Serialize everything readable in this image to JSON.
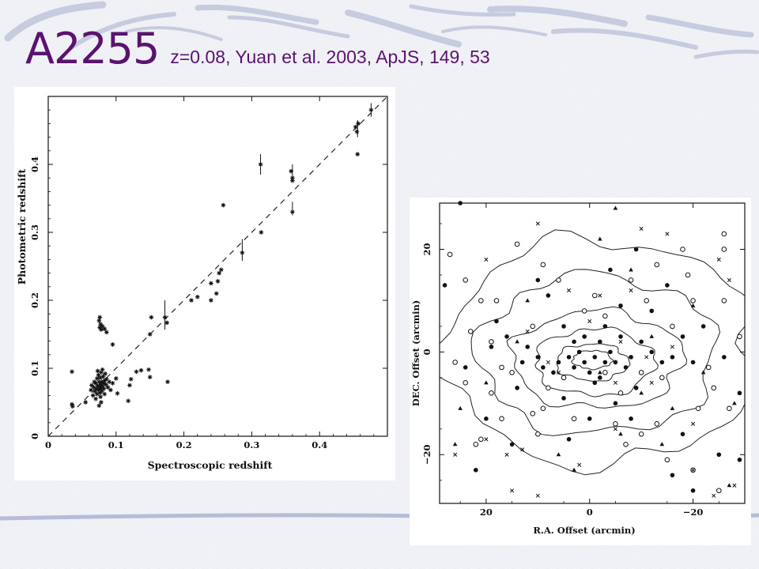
{
  "slide": {
    "title": "A2255",
    "subtitle": "z=0.08, Yuan et al. 2003, ApJS, 149, 53",
    "title_color": "#5a136e",
    "accent_color": "#9aa0c8"
  },
  "chart_data": [
    {
      "type": "scatter",
      "title": "",
      "xlabel": "Spectroscopic redshift",
      "ylabel": "Photometric redshift",
      "xlim": [
        0,
        0.5
      ],
      "ylim": [
        0,
        0.5
      ],
      "xticks": [
        0,
        0.1,
        0.2,
        0.3,
        0.4
      ],
      "yticks": [
        0,
        0.1,
        0.2,
        0.3,
        0.4
      ],
      "xtick_labels": [
        "0",
        "0.1",
        "0.2",
        "0.3",
        "0.4"
      ],
      "ytick_labels": [
        "0",
        "0.1",
        "0.2",
        "0.3",
        "0.4"
      ],
      "grid": false,
      "reference_line": {
        "style": "dashed",
        "x": [
          0,
          0.5
        ],
        "y": [
          0,
          0.5
        ]
      },
      "marker": "asterisk",
      "points": [
        [
          0.035,
          0.095
        ],
        [
          0.035,
          0.047
        ],
        [
          0.036,
          0.044
        ],
        [
          0.055,
          0.05
        ],
        [
          0.063,
          0.068
        ],
        [
          0.064,
          0.075
        ],
        [
          0.066,
          0.06
        ],
        [
          0.067,
          0.072
        ],
        [
          0.068,
          0.08
        ],
        [
          0.069,
          0.066
        ],
        [
          0.07,
          0.078
        ],
        [
          0.071,
          0.07
        ],
        [
          0.072,
          0.085
        ],
        [
          0.072,
          0.062
        ],
        [
          0.073,
          0.074
        ],
        [
          0.074,
          0.09
        ],
        [
          0.074,
          0.068
        ],
        [
          0.075,
          0.08
        ],
        [
          0.076,
          0.072
        ],
        [
          0.076,
          0.064
        ],
        [
          0.077,
          0.086
        ],
        [
          0.077,
          0.076
        ],
        [
          0.078,
          0.07
        ],
        [
          0.078,
          0.094
        ],
        [
          0.079,
          0.08
        ],
        [
          0.079,
          0.066
        ],
        [
          0.08,
          0.074
        ],
        [
          0.081,
          0.088
        ],
        [
          0.082,
          0.07
        ],
        [
          0.082,
          0.078
        ],
        [
          0.083,
          0.082
        ],
        [
          0.084,
          0.092
        ],
        [
          0.085,
          0.076
        ],
        [
          0.086,
          0.084
        ],
        [
          0.088,
          0.072
        ],
        [
          0.07,
          0.055
        ],
        [
          0.077,
          0.058
        ],
        [
          0.075,
          0.045
        ],
        [
          0.078,
          0.05
        ],
        [
          0.083,
          0.062
        ],
        [
          0.073,
          0.096
        ],
        [
          0.08,
          0.098
        ],
        [
          0.09,
          0.08
        ],
        [
          0.095,
          0.078
        ],
        [
          0.1,
          0.085
        ],
        [
          0.092,
          0.068
        ],
        [
          0.102,
          0.063
        ],
        [
          0.12,
          0.075
        ],
        [
          0.122,
          0.084
        ],
        [
          0.118,
          0.052
        ],
        [
          0.075,
          0.17
        ],
        [
          0.076,
          0.16
        ],
        [
          0.077,
          0.165
        ],
        [
          0.078,
          0.157
        ],
        [
          0.08,
          0.162
        ],
        [
          0.083,
          0.158
        ],
        [
          0.086,
          0.153
        ],
        [
          0.076,
          0.175
        ],
        [
          0.095,
          0.135
        ],
        [
          0.13,
          0.095
        ],
        [
          0.137,
          0.097
        ],
        [
          0.148,
          0.098
        ],
        [
          0.15,
          0.087
        ],
        [
          0.15,
          0.15
        ],
        [
          0.152,
          0.175
        ],
        [
          0.172,
          0.175
        ],
        [
          0.175,
          0.167
        ],
        [
          0.176,
          0.08
        ],
        [
          0.211,
          0.2
        ],
        [
          0.22,
          0.205
        ],
        [
          0.24,
          0.225
        ],
        [
          0.24,
          0.2
        ],
        [
          0.248,
          0.21
        ],
        [
          0.25,
          0.228
        ],
        [
          0.252,
          0.24
        ],
        [
          0.255,
          0.245
        ],
        [
          0.258,
          0.34
        ],
        [
          0.286,
          0.27
        ],
        [
          0.313,
          0.4
        ],
        [
          0.314,
          0.3
        ],
        [
          0.358,
          0.39
        ],
        [
          0.36,
          0.38
        ],
        [
          0.36,
          0.376
        ],
        [
          0.36,
          0.33
        ],
        [
          0.453,
          0.455
        ],
        [
          0.455,
          0.448
        ],
        [
          0.457,
          0.46
        ],
        [
          0.456,
          0.415
        ],
        [
          0.476,
          0.48
        ]
      ],
      "error_bars": [
        {
          "x": 0.172,
          "y": 0.18,
          "ylow": 0.157,
          "yhigh": 0.2
        },
        {
          "x": 0.286,
          "y": 0.272,
          "ylow": 0.258,
          "yhigh": 0.29
        },
        {
          "x": 0.313,
          "y": 0.4,
          "ylow": 0.385,
          "yhigh": 0.415
        },
        {
          "x": 0.36,
          "y": 0.335,
          "ylow": 0.325,
          "yhigh": 0.345
        },
        {
          "x": 0.36,
          "y": 0.39,
          "ylow": 0.375,
          "yhigh": 0.4
        },
        {
          "x": 0.456,
          "y": 0.455,
          "ylow": 0.44,
          "yhigh": 0.465
        },
        {
          "x": 0.476,
          "y": 0.48,
          "ylow": 0.47,
          "yhigh": 0.49
        }
      ]
    },
    {
      "type": "scatter",
      "title": "",
      "xlabel": "R.A. Offset (arcmin)",
      "ylabel": "DEC. Offset (arcmin)",
      "xlim": [
        29,
        -30
      ],
      "ylim": [
        -29.5,
        29
      ],
      "xticks": [
        20,
        0,
        -20
      ],
      "yticks": [
        20,
        0,
        -20
      ],
      "xtick_labels": [
        "20",
        "0",
        "−20"
      ],
      "ytick_labels": [
        "20",
        "0",
        "−20"
      ],
      "grid": false,
      "contours": [
        {
          "cx": -0.5,
          "cy": -1.5,
          "rx": 3.8,
          "ry": 1.8
        },
        {
          "cx": -0.5,
          "cy": -2.0,
          "rx": 7.0,
          "ry": 3.6
        },
        {
          "cx": -1.0,
          "cy": -2.0,
          "rx": 11.5,
          "ry": 6.5
        },
        {
          "cx": -1.5,
          "cy": -1.5,
          "rx": 16.5,
          "ry": 9.5
        },
        {
          "cx": -1.5,
          "cy": -0.5,
          "rx": 23.0,
          "ry": 15.5
        },
        {
          "cx": -2.0,
          "cy": 0.0,
          "rx": 30.0,
          "ry": 22.0
        }
      ],
      "series": [
        {
          "marker": "filled-circle",
          "points": [
            [
              25,
              29
            ],
            [
              9,
              -3
            ],
            [
              6,
              -2
            ],
            [
              3,
              -3
            ],
            [
              1,
              -2
            ],
            [
              -1,
              -1
            ],
            [
              -3,
              -2
            ],
            [
              -5,
              -2
            ],
            [
              -7,
              -3
            ],
            [
              2,
              0
            ],
            [
              0,
              -4
            ],
            [
              -2,
              -5
            ],
            [
              4,
              -1
            ],
            [
              -4,
              0
            ],
            [
              7,
              -4
            ],
            [
              -8,
              -1
            ],
            [
              10,
              -1
            ],
            [
              12,
              1
            ],
            [
              13,
              -2
            ],
            [
              -10,
              2
            ],
            [
              -12,
              0
            ],
            [
              -14,
              -2
            ],
            [
              16,
              3
            ],
            [
              19,
              1
            ],
            [
              -16,
              -1
            ],
            [
              -18,
              3
            ],
            [
              -20,
              -2
            ],
            [
              14,
              -7
            ],
            [
              -9,
              -7
            ],
            [
              5,
              -9
            ],
            [
              -5,
              -10
            ],
            [
              8,
              11
            ],
            [
              -6,
              9
            ],
            [
              -12,
              8
            ],
            [
              -15,
              13
            ],
            [
              18,
              6
            ],
            [
              -22,
              5
            ],
            [
              24,
              -3
            ],
            [
              -26,
              -1
            ],
            [
              20,
              -13
            ],
            [
              -18,
              -16
            ],
            [
              -25,
              -20
            ],
            [
              28,
              13
            ],
            [
              10,
              14
            ],
            [
              -4,
              16
            ],
            [
              -9,
              20
            ],
            [
              -29,
              -8
            ],
            [
              -29,
              -21
            ],
            [
              22,
              -23
            ],
            [
              -20,
              -27
            ],
            [
              4,
              -17
            ],
            [
              -16,
              -24
            ],
            [
              0,
              -13
            ],
            [
              -8,
              -13
            ],
            [
              15,
              -18
            ],
            [
              1,
              3
            ],
            [
              -2,
              2
            ],
            [
              3,
              2
            ],
            [
              -6,
              3
            ],
            [
              -1,
              -6
            ],
            [
              5,
              5
            ],
            [
              -3,
              5
            ]
          ]
        },
        {
          "marker": "open-circle",
          "points": [
            [
              27,
              19
            ],
            [
              24,
              14
            ],
            [
              21,
              10
            ],
            [
              23,
              4
            ],
            [
              26,
              -2
            ],
            [
              19,
              -8
            ],
            [
              17,
              -13
            ],
            [
              -13,
              17
            ],
            [
              -19,
              15
            ],
            [
              -26,
              10
            ],
            [
              -29,
              3
            ],
            [
              -24,
              -7
            ],
            [
              -21,
              -11
            ],
            [
              -13,
              -14
            ],
            [
              10,
              -16
            ],
            [
              3,
              -13
            ],
            [
              -5,
              -14
            ],
            [
              15,
              -4
            ],
            [
              -16,
              5
            ],
            [
              6,
              14
            ],
            [
              -8,
              14
            ],
            [
              -26,
              23
            ],
            [
              -14,
              -5
            ],
            [
              11,
              5
            ],
            [
              -10,
              -4
            ],
            [
              8,
              -7
            ],
            [
              -3,
              7
            ],
            [
              18,
              10
            ],
            [
              -27,
              -11
            ],
            [
              14,
              21
            ],
            [
              -18,
              20
            ],
            [
              -26,
              20
            ],
            [
              24,
              -6
            ],
            [
              -11,
              10
            ],
            [
              1,
              8
            ],
            [
              9,
              -11
            ],
            [
              -6,
              -8
            ],
            [
              21,
              -17
            ],
            [
              -7,
              -18
            ],
            [
              17,
              -3
            ],
            [
              -23,
              -3
            ],
            [
              11,
              -12
            ],
            [
              -1,
              11
            ],
            [
              -20,
              10
            ],
            [
              19,
              2
            ],
            [
              -10,
              -16
            ],
            [
              5,
              -5
            ],
            [
              -3,
              -4
            ],
            [
              -25,
              -27
            ],
            [
              9,
              17
            ],
            [
              -15,
              -21
            ],
            [
              22,
              -18
            ],
            [
              -20,
              -23
            ]
          ]
        },
        {
          "marker": "triangle",
          "points": [
            [
              -5,
              28
            ],
            [
              -2,
              22
            ],
            [
              -8,
              16
            ],
            [
              -12,
              3
            ],
            [
              25,
              -11
            ],
            [
              20,
              -6
            ],
            [
              -20,
              9
            ],
            [
              -16,
              -11
            ],
            [
              -10,
              -8
            ],
            [
              6,
              -20
            ],
            [
              -2,
              -4
            ],
            [
              14,
              2
            ],
            [
              12,
              10
            ],
            [
              -22,
              -4
            ],
            [
              -28,
              -10
            ],
            [
              -6,
              -16
            ],
            [
              3,
              -23
            ],
            [
              -14,
              -18
            ],
            [
              26,
              -18
            ],
            [
              -27,
              -26
            ]
          ]
        },
        {
          "marker": "cross",
          "points": [
            [
              10,
              25
            ],
            [
              -10,
              24
            ],
            [
              -15,
              23
            ],
            [
              -25,
              18
            ],
            [
              -2,
              11
            ],
            [
              4,
              12
            ],
            [
              -8,
              12
            ],
            [
              12,
              4
            ],
            [
              8,
              -2
            ],
            [
              -5,
              -6
            ],
            [
              6,
              -4
            ],
            [
              -12,
              -6
            ],
            [
              -20,
              -14
            ],
            [
              20,
              -17
            ],
            [
              26,
              -20
            ],
            [
              -24,
              -28
            ],
            [
              13,
              -19
            ],
            [
              2,
              -22
            ],
            [
              16,
              -20
            ],
            [
              -20,
              -23
            ],
            [
              15,
              -27
            ],
            [
              -5,
              -15
            ],
            [
              -16,
              1
            ],
            [
              20,
              18
            ],
            [
              -28,
              -26
            ],
            [
              -27,
              14
            ],
            [
              10,
              -28
            ],
            [
              -6,
              2
            ],
            [
              0,
              6
            ],
            [
              -11,
              -1
            ]
          ]
        }
      ]
    }
  ]
}
